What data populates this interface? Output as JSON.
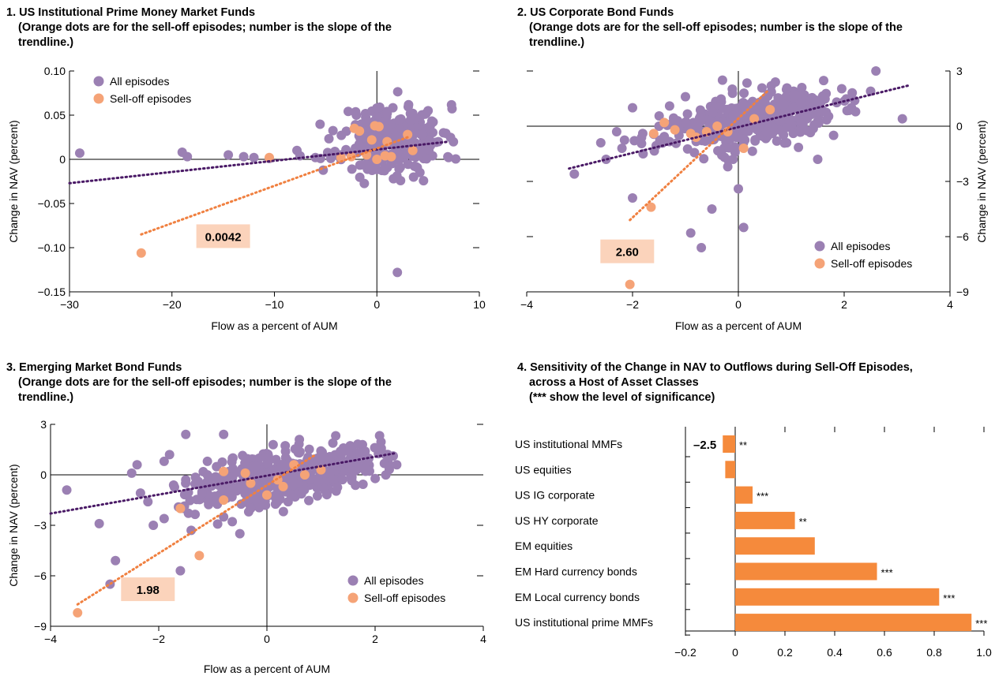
{
  "colors": {
    "all": "#9b80b3",
    "selloff": "#f5a377",
    "trend_all": "#4a1a66",
    "trend_selloff": "#f08040",
    "bar": "#f58a3c",
    "slope_box": "#fbd3bb"
  },
  "chart_data": [
    {
      "type": "scatter",
      "title_lines": [
        "1. US Institutional Prime Money Market Funds",
        "(Orange dots are for the sell-off episodes; number is the slope of the",
        "trendline.)"
      ],
      "xlabel": "Flow as a percent of AUM",
      "ylabel": "Change in NAV (percent)",
      "xlim": [
        -30,
        10
      ],
      "ylim": [
        -0.15,
        0.1
      ],
      "xticks": [
        -30,
        -20,
        -10,
        0,
        10
      ],
      "xtick_labels": [
        "−30",
        "−20",
        "−10",
        "0",
        "10"
      ],
      "yticks": [
        -0.15,
        -0.1,
        -0.05,
        0,
        0.05,
        0.1
      ],
      "ytick_labels": [
        "−0.15",
        "−0.10",
        "−0.05",
        "0",
        "0.05",
        "0.10"
      ],
      "yaxis_side": "left",
      "legend": {
        "all": "All episodes",
        "selloff": "Sell-off episodes",
        "position": "top-left"
      },
      "slope_label": "0.0042",
      "slope_pos": [
        -15,
        -0.087
      ],
      "trend_all": {
        "x": [
          -30,
          7
        ],
        "y": [
          -0.027,
          0.02
        ]
      },
      "trend_selloff": {
        "x": [
          -23,
          3
        ],
        "y": [
          -0.085,
          0.025
        ]
      },
      "cloud": {
        "x_center": 1.5,
        "x_spread": 2.5,
        "y_center": 0.022,
        "y_spread": 0.02,
        "n": 260,
        "seed": 11,
        "corr": 0.0
      },
      "all_points": [
        [
          -29,
          0.007
        ],
        [
          -19,
          0.008
        ],
        [
          -18.5,
          0.003
        ],
        [
          -14.5,
          0.005
        ],
        [
          -13,
          0.003
        ],
        [
          -12,
          0.002
        ],
        [
          -10.5,
          0.001
        ],
        [
          -7.8,
          0.01
        ],
        [
          -7.5,
          0.004
        ],
        [
          -6,
          0.002
        ],
        [
          -5.5,
          0.001
        ],
        [
          -4.5,
          0.001
        ],
        [
          -3.5,
          0.005
        ],
        [
          2,
          -0.128
        ],
        [
          2.2,
          0.045
        ],
        [
          3.5,
          0.052
        ],
        [
          5,
          0.055
        ],
        [
          6.5,
          0.03
        ],
        [
          -2,
          0.05
        ],
        [
          0,
          0.058
        ],
        [
          -1.5,
          0.04
        ],
        [
          4.5,
          0.01
        ],
        [
          6,
          0.02
        ]
      ],
      "selloff_points": [
        [
          -23,
          -0.106
        ],
        [
          -10.5,
          0.002
        ],
        [
          -3.5,
          0.002
        ],
        [
          -2.5,
          0.003
        ],
        [
          -2.2,
          0.035
        ],
        [
          -1.7,
          0.032
        ],
        [
          -1,
          0.005
        ],
        [
          -0.2,
          0.038
        ],
        [
          0.2,
          0.037
        ],
        [
          0,
          0.0
        ],
        [
          0.8,
          0.004
        ],
        [
          1.4,
          0.003
        ],
        [
          3,
          0.028
        ],
        [
          3.5,
          0.01
        ],
        [
          1,
          0.02
        ],
        [
          -0.5,
          0.022
        ]
      ]
    },
    {
      "type": "scatter",
      "title_lines": [
        "2. US Corporate Bond Funds",
        "(Orange dots are for the sell-off episodes; number is the slope of the",
        "trendline.)"
      ],
      "xlabel": "Flow as a percent of AUM",
      "ylabel": "Change in NAV (percent)",
      "xlim": [
        -4,
        4
      ],
      "ylim": [
        -9,
        3
      ],
      "xticks": [
        -4,
        -2,
        0,
        2,
        4
      ],
      "xtick_labels": [
        "−4",
        "−2",
        "0",
        "2",
        "4"
      ],
      "yticks": [
        -9,
        -6,
        -3,
        0,
        3
      ],
      "ytick_labels": [
        "−9",
        "−6",
        "−3",
        "0",
        "3"
      ],
      "yaxis_side": "right",
      "legend": {
        "all": "All episodes",
        "selloff": "Sell-off episodes",
        "position": "bottom-right"
      },
      "slope_label": "2.60",
      "slope_pos": [
        -2.1,
        -6.8
      ],
      "trend_all": {
        "x": [
          -3.2,
          3.2
        ],
        "y": [
          -2.3,
          2.2
        ]
      },
      "trend_selloff": {
        "x": [
          -2.05,
          0.55
        ],
        "y": [
          -5.1,
          1.9
        ]
      },
      "cloud": {
        "x_center": 0.2,
        "x_spread": 0.8,
        "y_center": 0.3,
        "y_spread": 0.75,
        "n": 420,
        "seed": 23,
        "corr": 0.45
      },
      "all_points": [
        [
          -3.1,
          -2.6
        ],
        [
          -2.6,
          -0.9
        ],
        [
          -2,
          -3.9
        ],
        [
          -2.5,
          -1.8
        ],
        [
          -2.2,
          -1.2
        ],
        [
          -1.8,
          -1.5
        ],
        [
          -1.3,
          1.1
        ],
        [
          -0.9,
          -5.8
        ],
        [
          -0.7,
          -6.6
        ],
        [
          -0.1,
          -1.8
        ],
        [
          0,
          -3.4
        ],
        [
          0.1,
          -5.5
        ],
        [
          -0.5,
          -4.5
        ],
        [
          -0.2,
          -2.2
        ],
        [
          1.5,
          -1.8
        ],
        [
          2.6,
          3.0
        ],
        [
          3.1,
          0.4
        ],
        [
          2.5,
          1.9
        ],
        [
          2.2,
          1.4
        ],
        [
          1.8,
          -0.5
        ],
        [
          1.2,
          2.1
        ],
        [
          0.7,
          2.4
        ],
        [
          -0.3,
          2.5
        ],
        [
          -1,
          1.6
        ],
        [
          -2,
          1.0
        ],
        [
          -1.5,
          0.0
        ],
        [
          -2.3,
          -0.3
        ]
      ],
      "selloff_points": [
        [
          -2.05,
          -8.6
        ],
        [
          -1.65,
          -4.4
        ],
        [
          -1.6,
          -0.4
        ],
        [
          -1.2,
          -0.2
        ],
        [
          -0.9,
          -0.4
        ],
        [
          -0.6,
          -0.3
        ],
        [
          -0.4,
          0.0
        ],
        [
          -0.2,
          -0.3
        ],
        [
          0.1,
          -1.2
        ],
        [
          0.3,
          0.4
        ],
        [
          0.6,
          0.9
        ],
        [
          -0.8,
          -0.6
        ],
        [
          -1.4,
          0.2
        ]
      ]
    },
    {
      "type": "scatter",
      "title_lines": [
        "3. Emerging Market Bond Funds",
        "(Orange dots are for the sell-off episodes; number is the slope of the",
        "trendline.)"
      ],
      "xlabel": "Flow as a percent of AUM",
      "ylabel": "Change in NAV (percent)",
      "xlim": [
        -4,
        4
      ],
      "ylim": [
        -9,
        3
      ],
      "xticks": [
        -4,
        -2,
        0,
        2,
        4
      ],
      "xtick_labels": [
        "−4",
        "−2",
        "0",
        "2",
        "4"
      ],
      "yticks": [
        -9,
        -6,
        -3,
        0,
        3
      ],
      "ytick_labels": [
        "−9",
        "−6",
        "−3",
        "0",
        "3"
      ],
      "yaxis_side": "left",
      "legend": {
        "all": "All episodes",
        "selloff": "Sell-off episodes",
        "position": "bottom-right"
      },
      "slope_label": "1.98",
      "slope_pos": [
        -2.2,
        -6.8
      ],
      "trend_all": {
        "x": [
          -4,
          2.4
        ],
        "y": [
          -2.3,
          1.3
        ]
      },
      "trend_selloff": {
        "x": [
          -3.5,
          0.9
        ],
        "y": [
          -7.7,
          1.2
        ]
      },
      "cloud": {
        "x_center": 0.3,
        "x_spread": 0.85,
        "y_center": 0.0,
        "y_spread": 0.9,
        "n": 460,
        "seed": 37,
        "corr": 0.5
      },
      "all_points": [
        [
          -3.7,
          -0.9
        ],
        [
          -3.1,
          -2.9
        ],
        [
          -2.5,
          0.1
        ],
        [
          -2.4,
          0.6
        ],
        [
          -2.2,
          -1.6
        ],
        [
          -2.1,
          -3.0
        ],
        [
          -1.9,
          -2.6
        ],
        [
          -1.9,
          0.8
        ],
        [
          -1.8,
          1.2
        ],
        [
          -1.6,
          -5.7
        ],
        [
          -1.5,
          2.4
        ],
        [
          -1.5,
          -0.3
        ],
        [
          -1.4,
          -3.3
        ],
        [
          -1.2,
          -1.1
        ],
        [
          -1.1,
          0.8
        ],
        [
          -0.8,
          2.4
        ],
        [
          -0.5,
          -3.5
        ],
        [
          -0.8,
          -2.5
        ],
        [
          -2.8,
          -5.1
        ],
        [
          -2.9,
          -6.5
        ],
        [
          2.4,
          0.6
        ],
        [
          2.2,
          1.2
        ],
        [
          1.5,
          1.4
        ],
        [
          0.6,
          2.1
        ],
        [
          -0.3,
          -2.0
        ]
      ],
      "selloff_points": [
        [
          -3.5,
          -8.2
        ],
        [
          -1.25,
          -4.8
        ],
        [
          -1.6,
          -2.0
        ],
        [
          -0.8,
          -1.5
        ],
        [
          -0.8,
          0.2
        ],
        [
          -0.3,
          -0.5
        ],
        [
          0,
          -1.2
        ],
        [
          0.2,
          -0.3
        ],
        [
          0.5,
          0.6
        ],
        [
          0.7,
          0.0
        ],
        [
          1,
          0.3
        ],
        [
          -0.4,
          0.1
        ],
        [
          0.3,
          -0.7
        ]
      ]
    },
    {
      "type": "bar",
      "orientation": "horizontal",
      "title_lines": [
        "4. Sensitivity of the Change in NAV to Outflows during Sell-Off Episodes,",
        "across a Host of Asset Classes",
        "(*** show the level of significance)"
      ],
      "categories": [
        "US institutional MMFs",
        "US equities",
        "US IG corporate",
        "US HY corporate",
        "EM equities",
        "EM Hard currency bonds",
        "EM Local currency bonds",
        "US institutional prime MMFs"
      ],
      "values": [
        -0.05,
        -0.04,
        0.07,
        0.24,
        0.32,
        0.57,
        0.82,
        0.95
      ],
      "significance": [
        "**",
        "",
        "***",
        "**",
        "",
        "***",
        "***",
        "***"
      ],
      "break_label": "–2.5",
      "xlim": [
        -0.2,
        1.0
      ],
      "xticks": [
        -0.2,
        0,
        0.2,
        0.4,
        0.6,
        0.8,
        1.0
      ],
      "xtick_labels": [
        "−0.2",
        "0",
        "0.2",
        "0.4",
        "0.6",
        "0.8",
        "1.0"
      ]
    }
  ]
}
